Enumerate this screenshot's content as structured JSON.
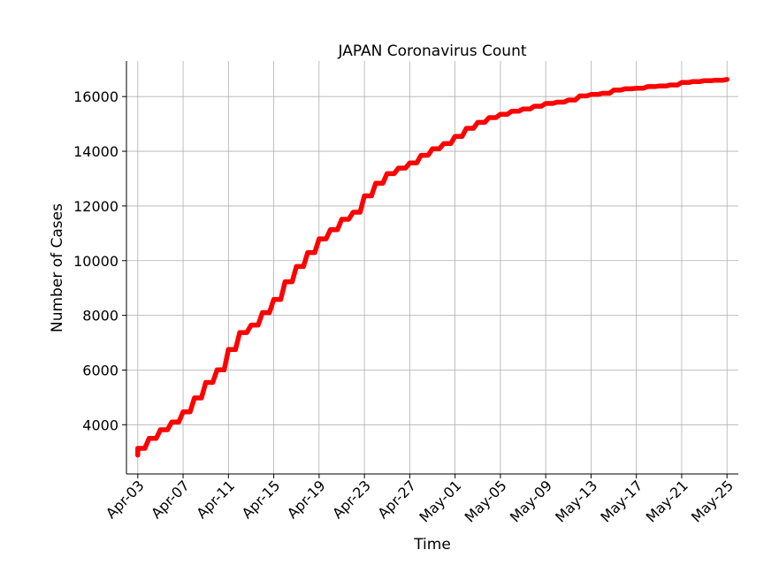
{
  "chart_data": {
    "type": "line",
    "title": "JAPAN Coronavirus Count",
    "xlabel": "Time",
    "ylabel": "Number of Cases",
    "grid": true,
    "line_color": "#ff0000",
    "x_ticks": [
      "Apr-03",
      "Apr-07",
      "Apr-11",
      "Apr-15",
      "Apr-19",
      "Apr-23",
      "Apr-27",
      "May-01",
      "May-05",
      "May-09",
      "May-13",
      "May-17",
      "May-21",
      "May-25"
    ],
    "y_ticks": [
      4000,
      6000,
      8000,
      10000,
      12000,
      14000,
      16000
    ],
    "xlim": [
      "2020-04-02",
      "2020-05-26"
    ],
    "ylim": [
      2200,
      17300
    ],
    "series": [
      {
        "x": [
          "2020-04-03",
          "2020-04-04",
          "2020-04-05",
          "2020-04-06",
          "2020-04-07",
          "2020-04-08",
          "2020-04-09",
          "2020-04-10",
          "2020-04-11",
          "2020-04-12",
          "2020-04-13",
          "2020-04-14",
          "2020-04-15",
          "2020-04-16",
          "2020-04-17",
          "2020-04-18",
          "2020-04-19",
          "2020-04-20",
          "2020-04-21",
          "2020-04-22",
          "2020-04-23",
          "2020-04-24",
          "2020-04-25",
          "2020-04-26",
          "2020-04-27",
          "2020-04-28",
          "2020-04-29",
          "2020-04-30",
          "2020-05-01",
          "2020-05-02",
          "2020-05-03",
          "2020-05-04",
          "2020-05-05",
          "2020-05-06",
          "2020-05-07",
          "2020-05-08",
          "2020-05-09",
          "2020-05-10",
          "2020-05-11",
          "2020-05-12",
          "2020-05-13",
          "2020-05-14",
          "2020-05-15",
          "2020-05-16",
          "2020-05-17",
          "2020-05-18",
          "2020-05-19",
          "2020-05-20",
          "2020-05-21",
          "2020-05-22",
          "2020-05-23",
          "2020-05-24",
          "2020-05-25"
        ],
        "values": [
          3139,
          3500,
          3817,
          4100,
          4472,
          4981,
          5548,
          6005,
          6748,
          7370,
          7645,
          8100,
          8582,
          9231,
          9787,
          10296,
          10797,
          11135,
          11512,
          11772,
          12368,
          12829,
          13182,
          13385,
          13576,
          13852,
          14088,
          14281,
          14544,
          14839,
          15057,
          15231,
          15354,
          15463,
          15547,
          15649,
          15747,
          15798,
          15874,
          16024,
          16079,
          16120,
          16237,
          16285,
          16305,
          16365,
          16385,
          16424,
          16513,
          16550,
          16581,
          16598,
          16623
        ]
      }
    ]
  }
}
